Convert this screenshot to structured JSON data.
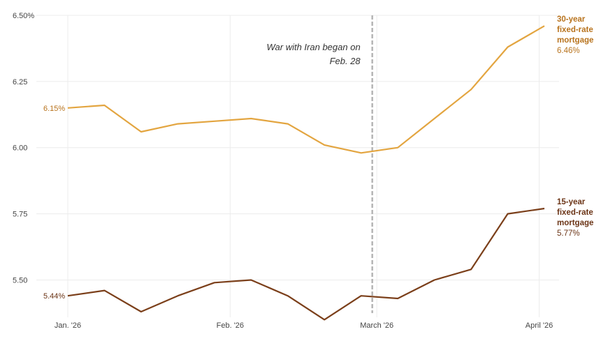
{
  "chart_data": {
    "type": "line",
    "x": [
      "2026-01-01",
      "2026-01-08",
      "2026-01-15",
      "2026-01-22",
      "2026-01-29",
      "2026-02-05",
      "2026-02-12",
      "2026-02-19",
      "2026-02-26",
      "2026-03-05",
      "2026-03-12",
      "2026-03-19",
      "2026-03-26",
      "2026-04-02"
    ],
    "xticks": [
      {
        "date": "2026-01-01",
        "label": "Jan. '26"
      },
      {
        "date": "2026-02-01",
        "label": "Feb. '26"
      },
      {
        "date": "2026-03-01",
        "label": "March '26"
      },
      {
        "date": "2026-04-01",
        "label": "April '26"
      }
    ],
    "yticks": [
      {
        "value": 6.5,
        "label": "6.50%"
      },
      {
        "value": 6.25,
        "label": "6.25"
      },
      {
        "value": 6.0,
        "label": "6.00"
      },
      {
        "value": 5.75,
        "label": "5.75"
      },
      {
        "value": 5.5,
        "label": "5.50"
      }
    ],
    "ylim": [
      5.38,
      6.5
    ],
    "grid": true,
    "series": [
      {
        "name": "30-year fixed-rate mortgage",
        "color": "#e3a540",
        "values": [
          6.15,
          6.16,
          6.06,
          6.09,
          6.1,
          6.11,
          6.09,
          6.01,
          5.98,
          6.0,
          6.11,
          6.22,
          6.38,
          6.46
        ],
        "start_label": "6.15%",
        "end_label_lines": [
          "30-year",
          "fixed-rate",
          "mortgage"
        ],
        "end_value_label": "6.46%",
        "label_color": "#b8731d"
      },
      {
        "name": "15-year fixed-rate mortgage",
        "color": "#7b3f1a",
        "values": [
          5.44,
          5.46,
          5.38,
          5.44,
          5.49,
          5.5,
          5.44,
          5.35,
          5.44,
          5.43,
          5.5,
          5.54,
          5.75,
          5.77
        ],
        "start_label": "5.44%",
        "end_label_lines": [
          "15-year",
          "fixed-rate",
          "mortgage"
        ],
        "end_value_label": "5.77%",
        "label_color": "#6b3416"
      }
    ],
    "annotation": {
      "date": "2026-02-28",
      "lines": [
        "War with Iran began on",
        "Feb. 28"
      ]
    }
  }
}
